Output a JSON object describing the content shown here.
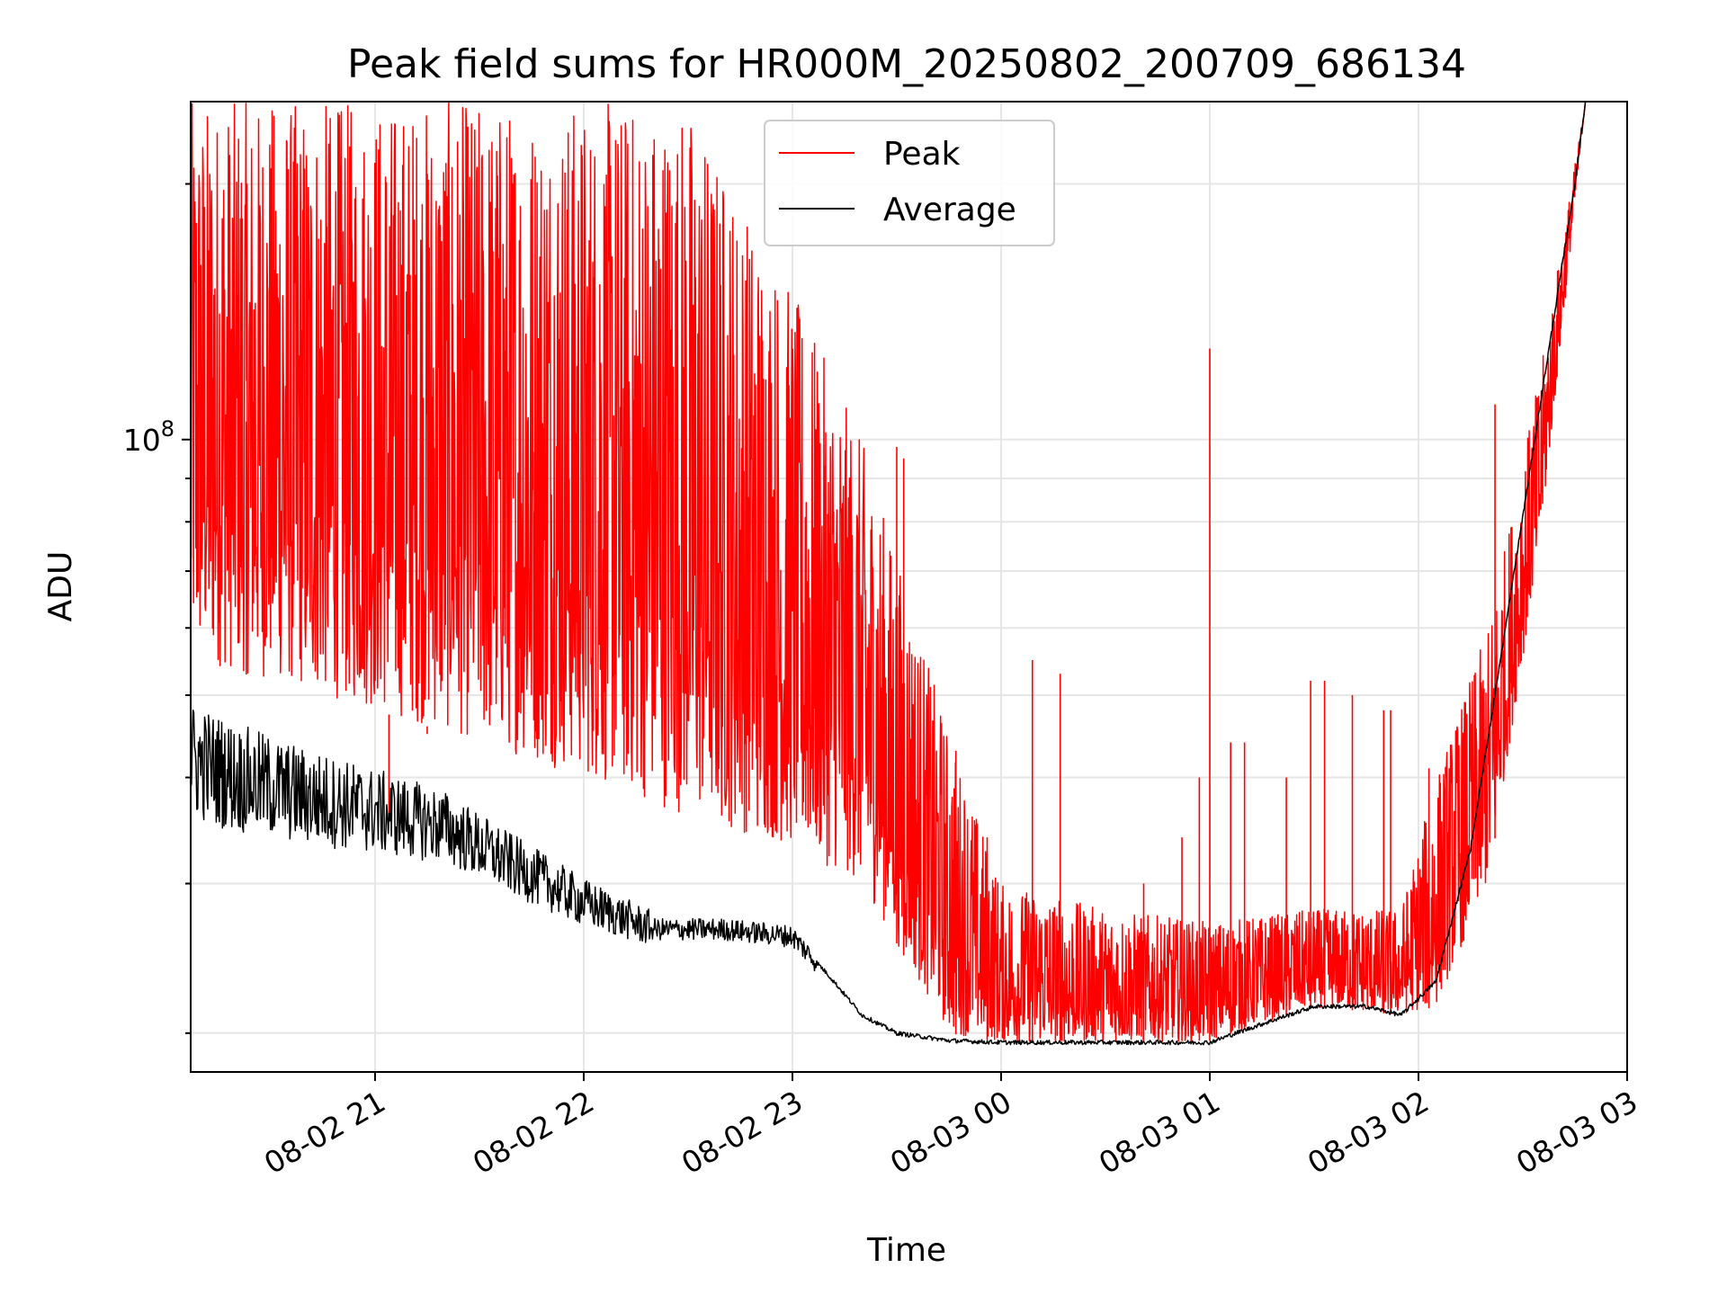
{
  "chart_data": {
    "type": "line",
    "title": "Peak field sums for HR000M_20250802_200709_686134",
    "xlabel": "Time",
    "ylabel": "ADU",
    "x_scale": "time",
    "y_scale": "log",
    "xlim": [
      "2025-08-02 20:07",
      "2025-08-03 03:00"
    ],
    "ylim": [
      18000000,
      250000000
    ],
    "x_ticks": [
      "08-02 21",
      "08-02 22",
      "08-02 23",
      "08-03 00",
      "08-03 01",
      "08-03 02",
      "08-03 03"
    ],
    "y_ticks": [
      {
        "value": 100000000,
        "base": "10",
        "exponent": "8"
      }
    ],
    "grid": true,
    "legend_position": "upper center",
    "series": [
      {
        "name": "Peak",
        "color": "#ff0000",
        "envelope": {
          "x": [
            "2025-08-02 20:07",
            "2025-08-02 20:30",
            "2025-08-02 21:00",
            "2025-08-02 21:30",
            "2025-08-02 22:00",
            "2025-08-02 22:30",
            "2025-08-02 23:00",
            "2025-08-02 23:20",
            "2025-08-02 23:45",
            "2025-08-03 00:00",
            "2025-08-03 00:30",
            "2025-08-03 01:00",
            "2025-08-03 01:30",
            "2025-08-03 01:55",
            "2025-08-03 02:05",
            "2025-08-03 02:20",
            "2025-08-03 02:35",
            "2025-08-03 02:48"
          ],
          "low": [
            55000000,
            52000000,
            48000000,
            44000000,
            40000000,
            36000000,
            33000000,
            30000000,
            20000000,
            19500000,
            19500000,
            19600000,
            21500000,
            21000000,
            21500000,
            30000000,
            75000000,
            250000000
          ],
          "high": [
            250000000,
            250000000,
            250000000,
            250000000,
            250000000,
            250000000,
            150000000,
            100000000,
            45000000,
            30000000,
            28000000,
            27000000,
            28000000,
            28000000,
            40000000,
            60000000,
            120000000,
            250000000
          ]
        },
        "spikes": [
          {
            "x": "2025-08-02 20:23",
            "y": 105000000
          },
          {
            "x": "2025-08-02 21:04",
            "y": 36000000
          },
          {
            "x": "2025-08-02 21:15",
            "y": 45000000
          },
          {
            "x": "2025-08-02 23:30",
            "y": 98000000
          },
          {
            "x": "2025-08-02 23:32",
            "y": 95000000
          },
          {
            "x": "2025-08-02 23:47",
            "y": 43000000
          },
          {
            "x": "2025-08-02 23:56",
            "y": 34000000
          },
          {
            "x": "2025-08-03 00:09",
            "y": 55000000
          },
          {
            "x": "2025-08-03 00:17",
            "y": 53000000
          },
          {
            "x": "2025-08-03 00:41",
            "y": 30000000
          },
          {
            "x": "2025-08-03 00:52",
            "y": 34000000
          },
          {
            "x": "2025-08-03 00:57",
            "y": 40000000
          },
          {
            "x": "2025-08-03 01:00",
            "y": 128000000
          },
          {
            "x": "2025-08-03 01:06",
            "y": 44000000
          },
          {
            "x": "2025-08-03 01:10",
            "y": 44000000
          },
          {
            "x": "2025-08-03 01:22",
            "y": 40000000
          },
          {
            "x": "2025-08-03 01:29",
            "y": 52000000
          },
          {
            "x": "2025-08-03 01:33",
            "y": 52000000
          },
          {
            "x": "2025-08-03 01:41",
            "y": 50000000
          },
          {
            "x": "2025-08-03 01:50",
            "y": 48000000
          },
          {
            "x": "2025-08-03 01:52",
            "y": 48000000
          },
          {
            "x": "2025-08-03 02:03",
            "y": 41000000
          },
          {
            "x": "2025-08-03 02:13",
            "y": 43000000
          },
          {
            "x": "2025-08-03 02:22",
            "y": 110000000
          }
        ]
      },
      {
        "name": "Average",
        "color": "#000000",
        "x": [
          "2025-08-02 20:07",
          "2025-08-02 20:20",
          "2025-08-02 20:40",
          "2025-08-02 21:00",
          "2025-08-02 21:20",
          "2025-08-02 21:40",
          "2025-08-02 22:00",
          "2025-08-02 22:20",
          "2025-08-02 22:40",
          "2025-08-02 23:00",
          "2025-08-02 23:10",
          "2025-08-02 23:20",
          "2025-08-02 23:30",
          "2025-08-02 23:45",
          "2025-08-03 00:00",
          "2025-08-03 00:30",
          "2025-08-03 00:50",
          "2025-08-03 01:00",
          "2025-08-03 01:15",
          "2025-08-03 01:30",
          "2025-08-03 01:45",
          "2025-08-03 01:55",
          "2025-08-03 02:05",
          "2025-08-03 02:15",
          "2025-08-03 02:25",
          "2025-08-03 02:35",
          "2025-08-03 02:45",
          "2025-08-03 02:48"
        ],
        "y": [
          42000000,
          40000000,
          38000000,
          36500000,
          35000000,
          31500000,
          28500000,
          26500000,
          26500000,
          26000000,
          23500000,
          21000000,
          20000000,
          19600000,
          19500000,
          19500000,
          19500000,
          19500000,
          20500000,
          21500000,
          21500000,
          21000000,
          23000000,
          33000000,
          60000000,
          110000000,
          200000000,
          250000000
        ]
      }
    ]
  }
}
